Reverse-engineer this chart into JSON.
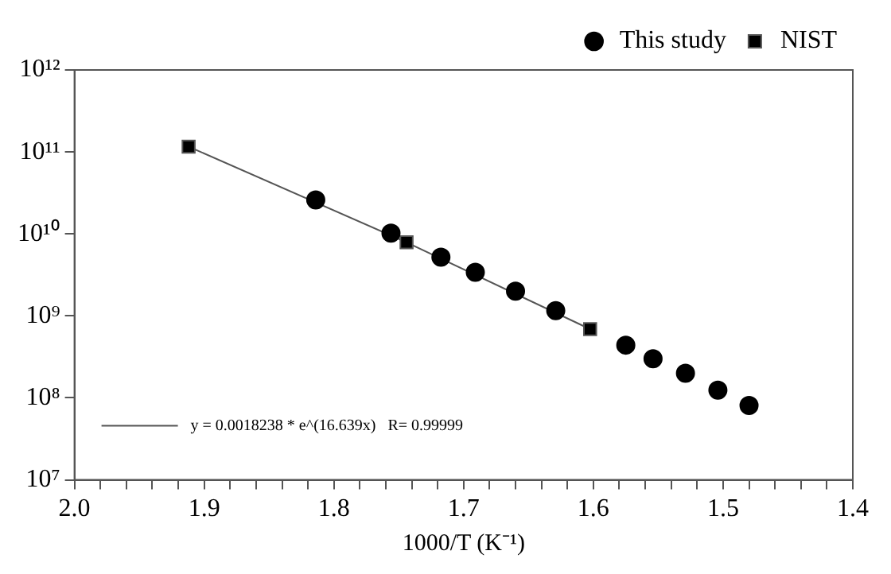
{
  "chart_data": {
    "type": "scatter",
    "xlabel": "1000/T (K⁻¹)",
    "x": [
      1.814,
      1.756,
      1.7175,
      1.691,
      1.66,
      1.629,
      1.575,
      1.554,
      1.529,
      1.504,
      1.48
    ],
    "series": [
      {
        "name": "This study",
        "marker": "circle",
        "color": "#000000",
        "values": [
          26000000000.0,
          10200000000.0,
          5200000000.0,
          3400000000.0,
          2000000000.0,
          1160000000.0,
          440000000.0,
          300000000.0,
          200000000.0,
          124000000.0,
          81000000.0
        ]
      },
      {
        "name": "NIST",
        "type": "line",
        "marker": "square",
        "color": "#000000",
        "x": [
          1.912,
          1.744,
          1.6025
        ],
        "values": [
          116000000000.0,
          7900000000.0,
          690000000.0
        ]
      }
    ],
    "log": "y",
    "xlim": [
      2.0,
      1.4
    ],
    "xticks": [
      {
        "value": 2.0,
        "label": "2.0"
      },
      {
        "value": 1.98,
        "label": null
      },
      {
        "value": 1.96,
        "label": null
      },
      {
        "value": 1.94,
        "label": null
      },
      {
        "value": 1.92,
        "label": null
      },
      1.9,
      {
        "value": 1.88,
        "label": null
      },
      {
        "value": 1.86,
        "label": null
      },
      {
        "value": 1.84,
        "label": null
      },
      {
        "value": 1.82,
        "label": null
      },
      1.8,
      {
        "value": 1.78,
        "label": null
      },
      {
        "value": 1.76,
        "label": null
      },
      {
        "value": 1.74,
        "label": null
      },
      {
        "value": 1.72,
        "label": null
      },
      1.7,
      {
        "value": 1.68,
        "label": null
      },
      {
        "value": 1.66,
        "label": null
      },
      {
        "value": 1.64,
        "label": null
      },
      {
        "value": 1.62,
        "label": null
      },
      1.6,
      {
        "value": 1.58,
        "label": null
      },
      {
        "value": 1.56,
        "label": null
      },
      {
        "value": 1.54,
        "label": null
      },
      {
        "value": 1.52,
        "label": null
      },
      1.5,
      {
        "value": 1.48,
        "label": null
      },
      {
        "value": 1.46,
        "label": null
      },
      {
        "value": 1.44,
        "label": null
      },
      {
        "value": 1.42,
        "label": null
      },
      1.4
    ],
    "ylim": [
      10000000.0,
      1000000000000.0
    ],
    "yticks": [
      {
        "value": 10000000.0,
        "label": "10⁷"
      },
      {
        "value": 100000000.0,
        "label": "10⁸"
      },
      {
        "value": 1000000000.0,
        "label": "10⁹"
      },
      {
        "value": 10000000000.0,
        "label": "10¹⁰"
      },
      {
        "value": 100000000000.0,
        "label": "10¹¹"
      },
      {
        "value": 1000000000000.0,
        "label": "10¹²"
      }
    ],
    "grid": false,
    "legend": "top right",
    "line_style": "solid",
    "annotations": [
      "y = 0.0018238 * e^(16.639x)   R= 0.99999"
    ]
  }
}
